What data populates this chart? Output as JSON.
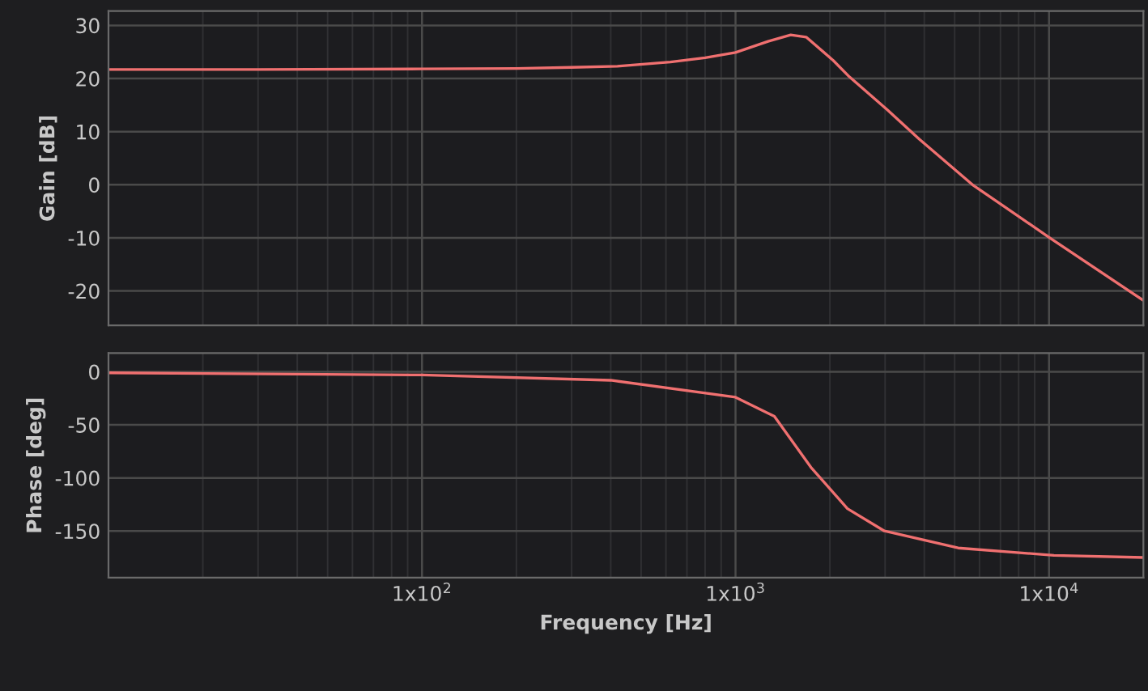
{
  "chart_data": [
    {
      "type": "line",
      "ylabel": "Gain [dB]",
      "log": "x",
      "xlim": [
        10,
        20000
      ],
      "ylim": [
        -26.5,
        32.7
      ],
      "xticks": [
        {
          "value": 100,
          "label": null
        },
        {
          "value": 1000,
          "label": null
        },
        {
          "value": 10000,
          "label": null
        }
      ],
      "yticks": [
        -20,
        -10,
        0,
        10,
        20,
        30
      ],
      "tick_labels": "y",
      "grid": true,
      "series": [
        {
          "color": "#f07070",
          "x": [
            10,
            30,
            100,
            200,
            300,
            420,
            620,
            800,
            1000,
            1270,
            1500,
            1680,
            2050,
            2310,
            3050,
            3850,
            5700,
            10000,
            20000
          ],
          "values": [
            21.7,
            21.7,
            21.8,
            21.9,
            22.1,
            22.3,
            23.1,
            23.9,
            24.9,
            27.0,
            28.2,
            27.8,
            23.4,
            20.3,
            14.1,
            8.6,
            0,
            -9.9,
            -21.8
          ]
        }
      ]
    },
    {
      "type": "line",
      "ylabel": "Phase [deg]",
      "xlabel": "Frequency [Hz]",
      "log": "x",
      "xlim": [
        10,
        20000
      ],
      "ylim": [
        -194,
        17.6
      ],
      "xticks": [
        {
          "value": 100,
          "label": "1x10$^{2}$"
        },
        {
          "value": 1000,
          "label": "1x10$^{3}$"
        },
        {
          "value": 10000,
          "label": "1x10$^{4}$"
        }
      ],
      "yticks": [
        -150,
        -100,
        -50,
        0
      ],
      "grid": true,
      "series": [
        {
          "color": "#f07070",
          "x": [
            10,
            100,
            400,
            1000,
            1330,
            1740,
            2275,
            2985,
            5130,
            10370,
            20000
          ],
          "values": [
            -1,
            -3,
            -8,
            -24,
            -42,
            -90,
            -129,
            -150,
            -166,
            -173,
            -175
          ]
        }
      ]
    }
  ]
}
